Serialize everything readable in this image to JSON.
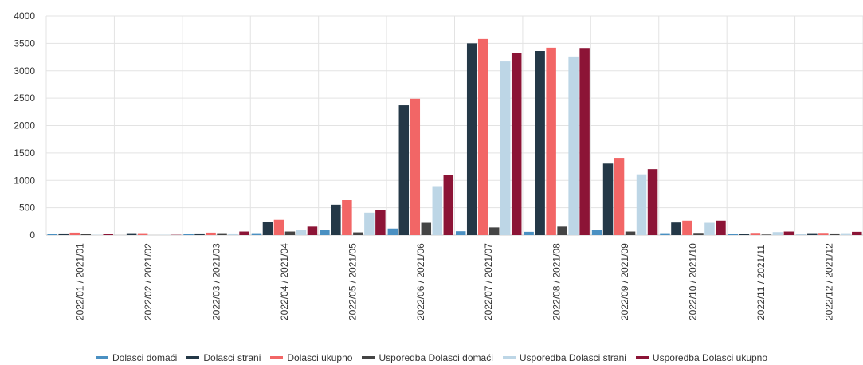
{
  "chart_data": {
    "type": "bar",
    "title": "",
    "xlabel": "",
    "ylabel": "",
    "ylim": [
      0,
      4000
    ],
    "yticks": [
      "0",
      "500",
      "1000",
      "1500",
      "2000",
      "2500",
      "3000",
      "3500",
      "4000"
    ],
    "grid": true,
    "legend_position": "bottom",
    "categories": [
      "2022/01 / 2021/01",
      "2022/02 / 2021/02",
      "2022/03 / 2021/03",
      "2022/04 / 2021/04",
      "2022/05 / 2021/05",
      "2022/06 / 2021/06",
      "2022/07 / 2021/07",
      "2022/08 / 2021/08",
      "2022/09 / 2021/09",
      "2022/10 / 2021/10",
      "2022/11 / 2021/11",
      "2022/12 / 2021/12"
    ],
    "series": [
      {
        "name": "Dolasci domaći",
        "color": "#4a90c2",
        "values": [
          15,
          0,
          15,
          35,
          90,
          120,
          70,
          60,
          90,
          35,
          15,
          5
        ]
      },
      {
        "name": "Dolasci strani",
        "color": "#243847",
        "values": [
          30,
          35,
          30,
          245,
          555,
          2370,
          3500,
          3360,
          1305,
          230,
          20,
          35
        ]
      },
      {
        "name": "Dolasci ukupno",
        "color": "#f26666",
        "values": [
          45,
          35,
          45,
          280,
          640,
          2490,
          3580,
          3420,
          1410,
          265,
          40,
          40
        ]
      },
      {
        "name": "Usporedba Dolasci domaći",
        "color": "#444444",
        "values": [
          15,
          0,
          35,
          65,
          50,
          225,
          140,
          155,
          65,
          40,
          10,
          30
        ]
      },
      {
        "name": "Usporedba Dolasci strani",
        "color": "#bdd6e6",
        "values": [
          5,
          5,
          30,
          90,
          410,
          880,
          3170,
          3260,
          1110,
          225,
          55,
          35
        ]
      },
      {
        "name": "Usporedba Dolasci ukupno",
        "color": "#8c1436",
        "values": [
          20,
          5,
          65,
          155,
          460,
          1100,
          3330,
          3415,
          1205,
          265,
          65,
          60
        ]
      }
    ]
  }
}
